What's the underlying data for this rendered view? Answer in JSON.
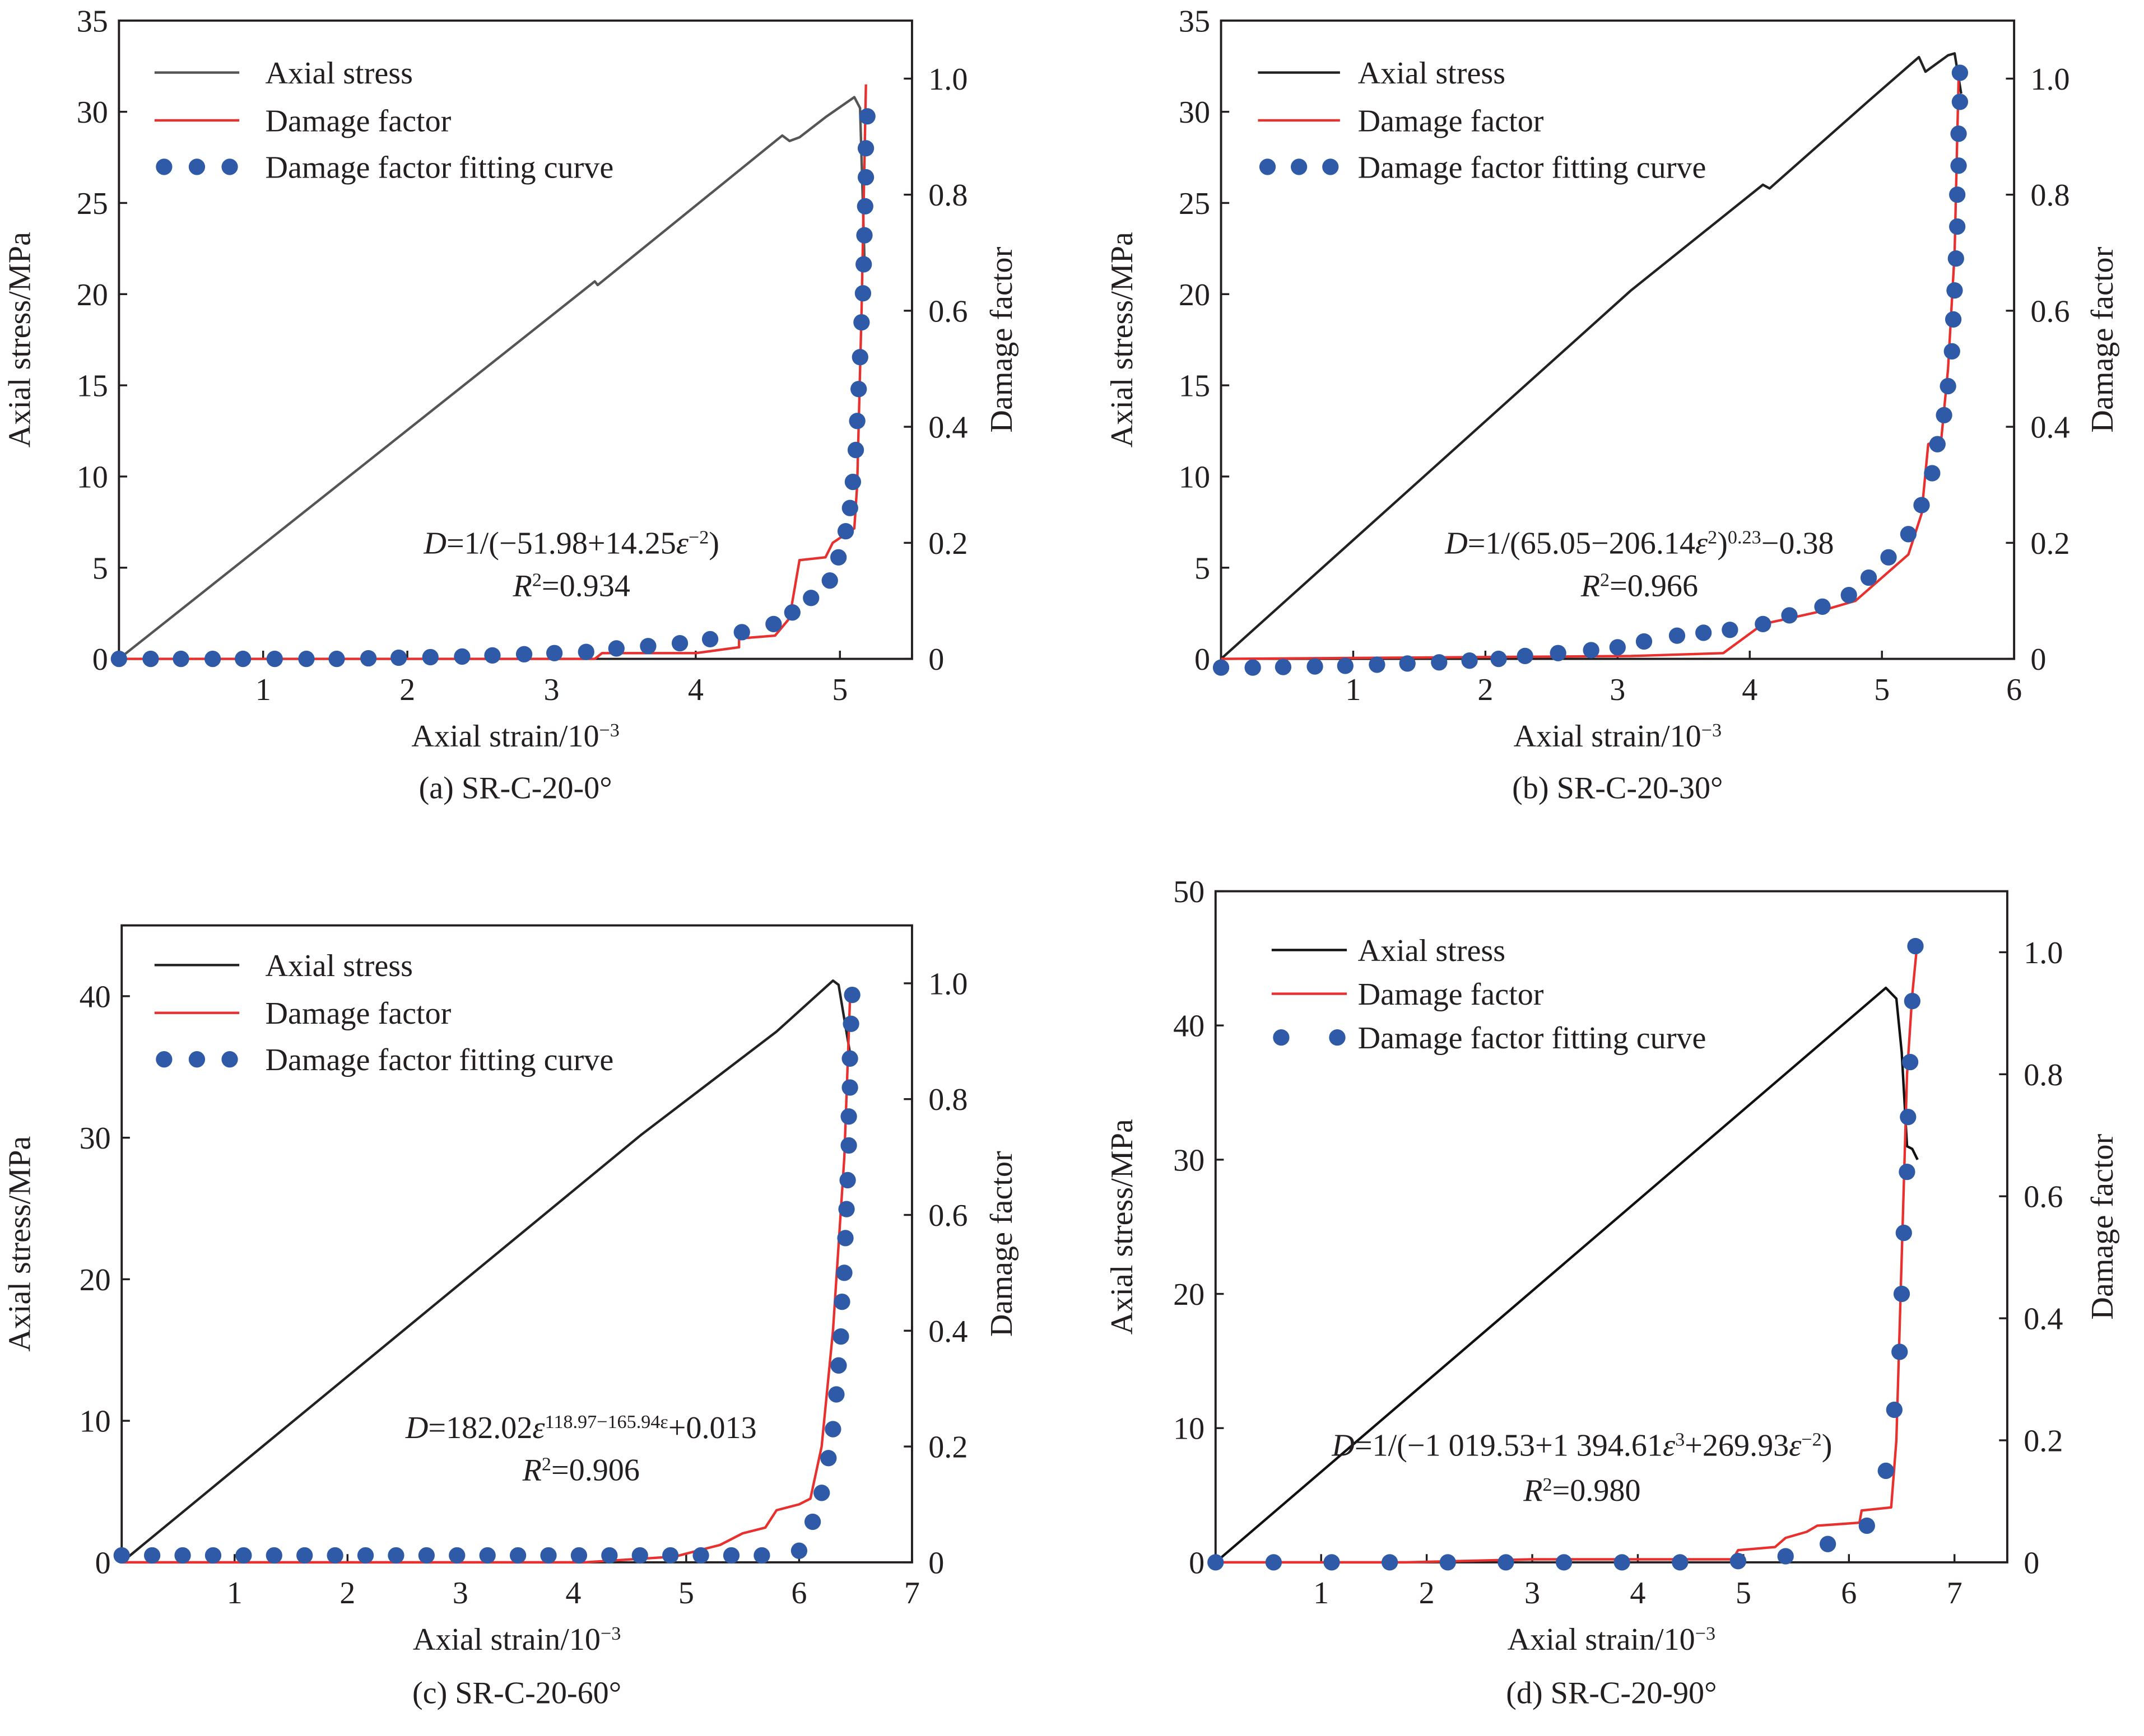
{
  "chart_data": [
    {
      "type": "line",
      "caption": "(a) SR-C-20-0°",
      "xlabel": "Axial strain/10",
      "xlabel_sup": "−3",
      "ylabel": "Axial stress/MPa",
      "y2label": "Damage factor",
      "xlim": [
        0,
        5.5
      ],
      "ylim": [
        0,
        35
      ],
      "y2lim": [
        0,
        1.1
      ],
      "xticks": [
        "1",
        "2",
        "3",
        "4",
        "5"
      ],
      "xtick_values": [
        1,
        2,
        3,
        4,
        5
      ],
      "yticks": [
        0,
        5,
        10,
        15,
        20,
        25,
        30,
        35
      ],
      "y2ticks": [
        "0",
        "0.2",
        "0.4",
        "0.6",
        "0.8",
        "1.0"
      ],
      "y2tick_values": [
        0,
        0.2,
        0.4,
        0.6,
        0.8,
        1.0
      ],
      "legend": [
        "Axial stress",
        "Damage factor",
        "Damage factor fitting curve"
      ],
      "legend_dots": 3,
      "colors": {
        "stress": "#555555",
        "damage": "#e8312f",
        "fit": "#2f5aa8"
      },
      "formula": [
        {
          "t": "D",
          "i": true
        },
        {
          "t": "=1/(−51.98+14.25"
        },
        {
          "t": "ε",
          "i": true
        },
        {
          "t": "−2",
          "sup": true
        },
        {
          "t": ")"
        }
      ],
      "r2": [
        {
          "t": "R",
          "i": true
        },
        {
          "t": "2",
          "sup": true
        },
        {
          "t": "=0.934"
        }
      ],
      "series": [
        {
          "name": "Axial stress",
          "axis": "left",
          "x": [
            0,
            3.3,
            3.32,
            4.6,
            4.65,
            4.72,
            4.9,
            5.1,
            5.14,
            5.17
          ],
          "y": [
            0,
            20.7,
            20.5,
            28.7,
            28.4,
            28.6,
            29.7,
            30.8,
            30.2,
            22
          ]
        },
        {
          "name": "Damage factor",
          "axis": "right",
          "x": [
            0,
            3.3,
            3.35,
            4.0,
            4.3,
            4.3,
            4.55,
            4.65,
            4.72,
            4.9,
            4.95,
            5.1,
            5.12,
            5.15,
            5.18
          ],
          "y": [
            0,
            0,
            0.01,
            0.01,
            0.02,
            0.035,
            0.04,
            0.07,
            0.17,
            0.175,
            0.2,
            0.225,
            0.3,
            0.6,
            0.99
          ]
        },
        {
          "name": "Damage factor fitting curve",
          "axis": "right",
          "x": [
            0,
            0.22,
            0.43,
            0.65,
            0.86,
            1.08,
            1.3,
            1.51,
            1.73,
            1.94,
            2.16,
            2.38,
            2.59,
            2.81,
            3.02,
            3.24,
            3.45,
            3.67,
            3.89,
            4.1,
            4.32,
            4.54,
            4.67,
            4.8,
            4.93,
            4.99,
            5.04,
            5.07,
            5.09,
            5.11,
            5.12,
            5.13,
            5.14,
            5.15,
            5.16,
            5.165,
            5.17,
            5.175,
            5.18,
            5.18,
            5.19
          ],
          "y": [
            0,
            0,
            0,
            0,
            0,
            0,
            0,
            0,
            0.001,
            0.002,
            0.003,
            0.004,
            0.006,
            0.008,
            0.01,
            0.012,
            0.018,
            0.022,
            0.027,
            0.034,
            0.046,
            0.06,
            0.08,
            0.105,
            0.135,
            0.175,
            0.22,
            0.26,
            0.305,
            0.36,
            0.41,
            0.465,
            0.52,
            0.58,
            0.63,
            0.68,
            0.73,
            0.78,
            0.83,
            0.88,
            0.935
          ]
        }
      ]
    },
    {
      "type": "line",
      "caption": "(b) SR-C-20-30°",
      "xlabel": "Axial strain/10",
      "xlabel_sup": "−3",
      "ylabel": "Axial stress/MPa",
      "y2label": "Damage factor",
      "xlim": [
        0,
        6
      ],
      "ylim": [
        0,
        35
      ],
      "y2lim": [
        0,
        1.1
      ],
      "xticks": [
        "1",
        "2",
        "3",
        "4",
        "5",
        "6"
      ],
      "xtick_values": [
        1,
        2,
        3,
        4,
        5,
        6
      ],
      "yticks": [
        0,
        5,
        10,
        15,
        20,
        25,
        30,
        35
      ],
      "y2ticks": [
        "0",
        "0.2",
        "0.4",
        "0.6",
        "0.8",
        "1.0"
      ],
      "y2tick_values": [
        0,
        0.2,
        0.4,
        0.6,
        0.8,
        1.0
      ],
      "legend": [
        "Axial stress",
        "Damage factor",
        "Damage factor fitting curve"
      ],
      "legend_dots": 3,
      "colors": {
        "stress": "#222222",
        "damage": "#e8312f",
        "fit": "#2f5aa8"
      },
      "formula": [
        {
          "t": "D",
          "i": true
        },
        {
          "t": "=1/(65.05−206.14"
        },
        {
          "t": "ε",
          "i": true
        },
        {
          "t": "2",
          "sup": true
        },
        {
          "t": ")"
        },
        {
          "t": "0.23",
          "sup": true
        },
        {
          "t": "−0.38"
        }
      ],
      "r2": [
        {
          "t": "R",
          "i": true
        },
        {
          "t": "2",
          "sup": true
        },
        {
          "t": "=0.966"
        }
      ],
      "series": [
        {
          "name": "Axial stress",
          "axis": "left",
          "x": [
            0,
            3.1,
            4.1,
            4.15,
            4.9,
            5.2,
            5.28,
            5.33,
            5.5,
            5.55,
            5.6
          ],
          "y": [
            0,
            20.2,
            26,
            25.8,
            30.6,
            32.5,
            33,
            32.2,
            33.1,
            33.2,
            31
          ]
        },
        {
          "name": "Damage factor",
          "axis": "right",
          "x": [
            0,
            3.1,
            3.8,
            4.1,
            4.3,
            4.5,
            4.8,
            5.0,
            5.2,
            5.3,
            5.35,
            5.45,
            5.5,
            5.55,
            5.58
          ],
          "y": [
            0,
            0.005,
            0.01,
            0.06,
            0.07,
            0.08,
            0.1,
            0.14,
            0.18,
            0.25,
            0.37,
            0.38,
            0.5,
            0.7,
            1.0
          ]
        },
        {
          "name": "Damage factor fitting curve",
          "axis": "right",
          "x": [
            0,
            0.24,
            0.47,
            0.71,
            0.94,
            1.18,
            1.41,
            1.65,
            1.88,
            2.1,
            2.3,
            2.55,
            2.8,
            3.0,
            3.2,
            3.45,
            3.65,
            3.85,
            4.1,
            4.3,
            4.55,
            4.75,
            4.9,
            5.05,
            5.2,
            5.3,
            5.38,
            5.42,
            5.47,
            5.5,
            5.53,
            5.54,
            5.55,
            5.56,
            5.57,
            5.57,
            5.58,
            5.58,
            5.59,
            5.59
          ],
          "y": [
            -0.015,
            -0.015,
            -0.014,
            -0.013,
            -0.012,
            -0.01,
            -0.008,
            -0.006,
            -0.003,
            0,
            0.005,
            0.01,
            0.015,
            0.02,
            0.03,
            0.04,
            0.045,
            0.05,
            0.06,
            0.075,
            0.09,
            0.11,
            0.14,
            0.175,
            0.215,
            0.265,
            0.32,
            0.37,
            0.42,
            0.47,
            0.53,
            0.585,
            0.635,
            0.69,
            0.745,
            0.8,
            0.85,
            0.905,
            0.96,
            1.01
          ]
        }
      ]
    },
    {
      "type": "line",
      "caption": "(c) SR-C-20-60°",
      "xlabel": "Axial strain/10",
      "xlabel_sup": "−3",
      "ylabel": "Axial stress/MPa",
      "y2label": "Damage factor",
      "xlim": [
        0,
        7
      ],
      "ylim": [
        0,
        45
      ],
      "y2lim": [
        0,
        1.1
      ],
      "xticks": [
        "1",
        "2",
        "3",
        "4",
        "5",
        "6",
        "7"
      ],
      "xtick_values": [
        1,
        2,
        3,
        4,
        5,
        6,
        7
      ],
      "yticks": [
        0,
        10,
        20,
        30,
        40
      ],
      "y2ticks": [
        "0",
        "0.2",
        "0.4",
        "0.6",
        "0.8",
        "1.0"
      ],
      "y2tick_values": [
        0,
        0.2,
        0.4,
        0.6,
        0.8,
        1.0
      ],
      "legend": [
        "Axial stress",
        "Damage factor",
        "Damage factor fitting curve"
      ],
      "legend_dots": 3,
      "colors": {
        "stress": "#222222",
        "damage": "#e8312f",
        "fit": "#2f5aa8"
      },
      "formula": [
        {
          "t": "D",
          "i": true
        },
        {
          "t": "=182.02"
        },
        {
          "t": "ε",
          "i": true
        },
        {
          "t": "118.97−165.94ε",
          "sup": true
        },
        {
          "t": "+0.013"
        }
      ],
      "r2": [
        {
          "t": "R",
          "i": true
        },
        {
          "t": "2",
          "sup": true
        },
        {
          "t": "=0.906"
        }
      ],
      "series": [
        {
          "name": "Axial stress",
          "axis": "left",
          "x": [
            0,
            4.6,
            5.8,
            6.3,
            6.35,
            6.45
          ],
          "y": [
            0,
            30.2,
            37.5,
            41.1,
            40.8,
            36
          ]
        },
        {
          "name": "Damage factor",
          "axis": "right",
          "x": [
            0,
            4.1,
            4.9,
            5.1,
            5.3,
            5.5,
            5.7,
            5.8,
            6.0,
            6.1,
            6.2,
            6.3,
            6.4,
            6.45
          ],
          "y": [
            0,
            0,
            0.01,
            0.02,
            0.03,
            0.05,
            0.06,
            0.09,
            0.1,
            0.11,
            0.2,
            0.4,
            0.7,
            0.97
          ]
        },
        {
          "name": "Damage factor fitting curve",
          "axis": "right",
          "x": [
            0,
            0.27,
            0.54,
            0.81,
            1.08,
            1.35,
            1.62,
            1.89,
            2.16,
            2.43,
            2.7,
            2.97,
            3.24,
            3.51,
            3.78,
            4.05,
            4.32,
            4.59,
            4.86,
            5.13,
            5.4,
            5.67,
            6.0,
            6.12,
            6.2,
            6.26,
            6.3,
            6.33,
            6.35,
            6.37,
            6.38,
            6.4,
            6.41,
            6.42,
            6.43,
            6.44,
            6.44,
            6.45,
            6.45,
            6.46,
            6.47
          ],
          "y": [
            0.012,
            0.012,
            0.012,
            0.012,
            0.012,
            0.012,
            0.012,
            0.012,
            0.012,
            0.012,
            0.012,
            0.012,
            0.012,
            0.012,
            0.012,
            0.012,
            0.012,
            0.012,
            0.012,
            0.012,
            0.012,
            0.012,
            0.02,
            0.07,
            0.12,
            0.18,
            0.23,
            0.29,
            0.34,
            0.39,
            0.45,
            0.5,
            0.56,
            0.61,
            0.66,
            0.72,
            0.77,
            0.82,
            0.87,
            0.93,
            0.98
          ]
        }
      ]
    },
    {
      "type": "line",
      "caption": "(d) SR-C-20-90°",
      "xlabel": "Axial strain/10",
      "xlabel_sup": "−3",
      "ylabel": "Axial stress/MPa",
      "y2label": "Damage factor",
      "xlim": [
        0,
        7.5
      ],
      "ylim": [
        0,
        50
      ],
      "y2lim": [
        0,
        1.1
      ],
      "xticks": [
        "1",
        "2",
        "3",
        "4",
        "5",
        "6",
        "7"
      ],
      "xtick_values": [
        1,
        2,
        3,
        4,
        5,
        6,
        7
      ],
      "yticks": [
        0,
        10,
        20,
        30,
        40,
        50
      ],
      "y2ticks": [
        "0",
        "0.2",
        "0.4",
        "0.6",
        "0.8",
        "1.0"
      ],
      "y2tick_values": [
        0,
        0.2,
        0.4,
        0.6,
        0.8,
        1.0
      ],
      "legend": [
        "Axial stress",
        "Damage factor",
        "Damage factor fitting curve"
      ],
      "legend_dots": 2,
      "colors": {
        "stress": "#111111",
        "damage": "#e8312f",
        "fit": "#2f5aa8"
      },
      "formula": [
        {
          "t": "D",
          "i": true
        },
        {
          "t": "=1/(−1 019.53+1 394.61"
        },
        {
          "t": "ε",
          "i": true
        },
        {
          "t": "3",
          "sup": true
        },
        {
          "t": "+269.93"
        },
        {
          "t": "ε",
          "i": true
        },
        {
          "t": "−2",
          "sup": true
        },
        {
          "t": ")"
        }
      ],
      "r2": [
        {
          "t": "R",
          "i": true
        },
        {
          "t": "2",
          "sup": true
        },
        {
          "t": "=0.980"
        }
      ],
      "series": [
        {
          "name": "Axial stress",
          "axis": "left",
          "x": [
            0,
            6.35,
            6.45,
            6.5,
            6.55,
            6.6,
            6.65
          ],
          "y": [
            0,
            42.8,
            42,
            38,
            31,
            30.8,
            30
          ]
        },
        {
          "name": "Damage factor",
          "axis": "right",
          "x": [
            0,
            1.8,
            3.0,
            4.9,
            4.95,
            5.3,
            5.4,
            5.6,
            5.7,
            6.1,
            6.12,
            6.4,
            6.45,
            6.5,
            6.55,
            6.6,
            6.65
          ],
          "y": [
            0,
            0,
            0.005,
            0.005,
            0.02,
            0.025,
            0.04,
            0.05,
            0.06,
            0.065,
            0.085,
            0.09,
            0.2,
            0.5,
            0.8,
            0.93,
            1.02
          ]
        },
        {
          "name": "Damage factor fitting curve",
          "axis": "right",
          "x": [
            0,
            0.55,
            1.1,
            1.65,
            2.2,
            2.75,
            3.3,
            3.85,
            4.4,
            4.95,
            5.4,
            5.8,
            6.17,
            6.35,
            6.43,
            6.48,
            6.5,
            6.52,
            6.55,
            6.56,
            6.58,
            6.6,
            6.63
          ],
          "y": [
            0,
            0,
            0,
            0,
            0,
            0,
            0,
            0,
            0,
            0.002,
            0.01,
            0.03,
            0.06,
            0.15,
            0.25,
            0.345,
            0.44,
            0.54,
            0.64,
            0.73,
            0.82,
            0.92,
            1.01
          ]
        }
      ]
    }
  ]
}
